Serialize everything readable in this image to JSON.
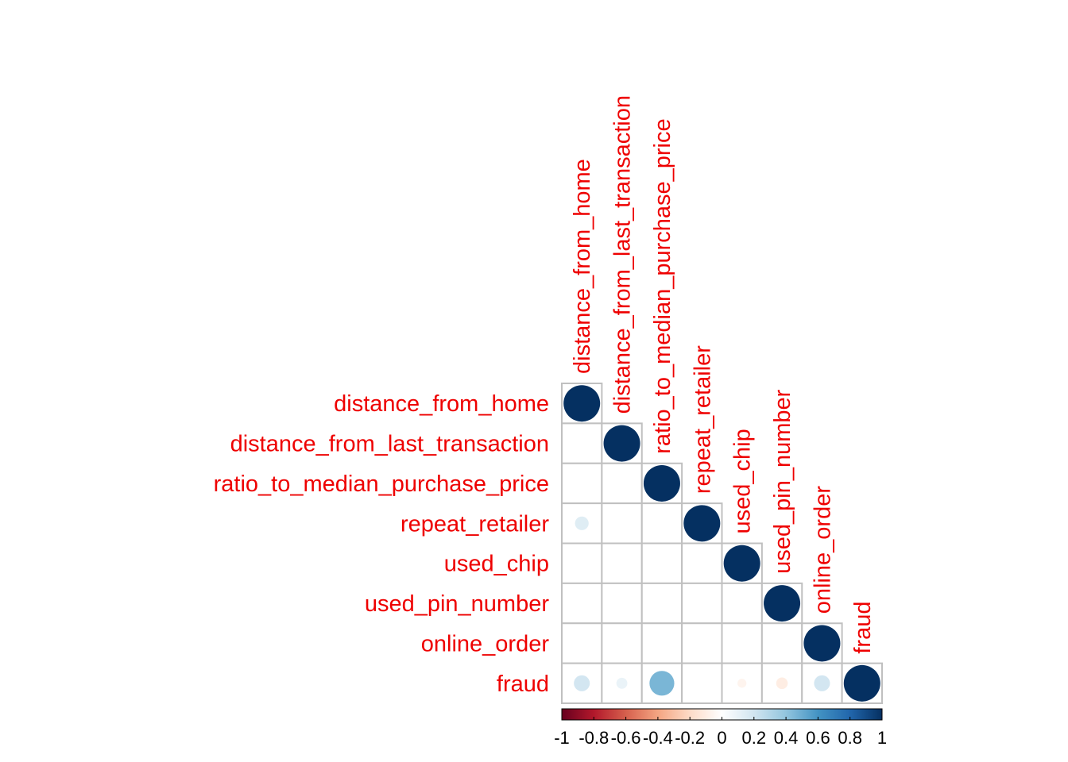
{
  "chart_data": {
    "type": "heatmap",
    "subtype": "correlation-lower-triangle-circles",
    "variables": [
      "distance_from_home",
      "distance_from_last_transaction",
      "ratio_to_median_purchase_price",
      "repeat_retailer",
      "used_chip",
      "used_pin_number",
      "online_order",
      "fraud"
    ],
    "matrix": [
      [
        1.0,
        0.0,
        0.0,
        0.14,
        0.0,
        0.0,
        0.0,
        0.19
      ],
      [
        0.0,
        1.0,
        0.0,
        0.0,
        0.0,
        0.0,
        0.0,
        0.09
      ],
      [
        0.0,
        0.0,
        1.0,
        0.0,
        0.0,
        0.0,
        0.0,
        0.46
      ],
      [
        0.14,
        0.0,
        0.0,
        1.0,
        0.0,
        0.0,
        0.0,
        0.0
      ],
      [
        0.0,
        0.0,
        0.0,
        0.0,
        1.0,
        0.0,
        0.0,
        -0.06
      ],
      [
        0.0,
        0.0,
        0.0,
        0.0,
        0.0,
        1.0,
        0.0,
        -0.1
      ],
      [
        0.0,
        0.0,
        0.0,
        0.0,
        0.0,
        0.0,
        1.0,
        0.19
      ],
      [
        0.19,
        0.09,
        0.46,
        0.0,
        -0.06,
        -0.1,
        0.19,
        1.0
      ]
    ],
    "label_color": "#ee0000",
    "grid_color": "#c0c0c0",
    "colorbar": {
      "min": -1,
      "max": 1,
      "tick_labels": [
        "-1",
        "-0.8",
        "-0.6",
        "-0.4",
        "-0.2",
        "0",
        "0.2",
        "0.4",
        "0.6",
        "0.8",
        "1"
      ],
      "color_stops": [
        "#67001f",
        "#b2182b",
        "#d6604d",
        "#f4a582",
        "#fddbc7",
        "#ffffff",
        "#d1e5f0",
        "#92c5de",
        "#4393c3",
        "#2166ac",
        "#053061"
      ]
    }
  }
}
